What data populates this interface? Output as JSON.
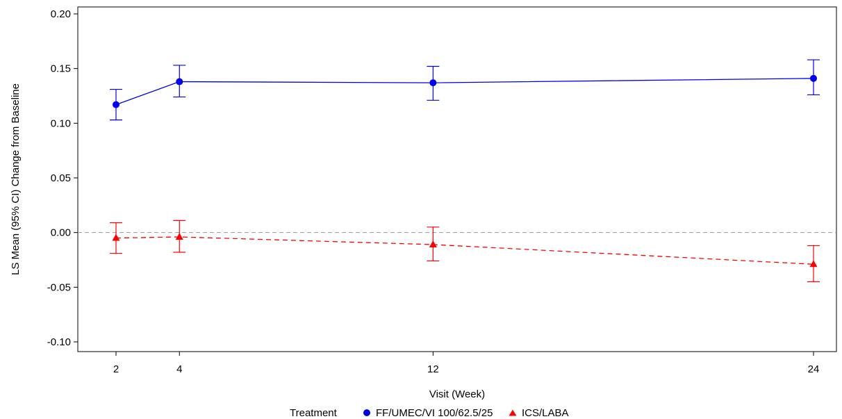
{
  "chart_data": {
    "type": "line",
    "title": "",
    "xlabel": "Visit (Week)",
    "ylabel": "LS Mean (95% CI) Change from Baseline",
    "x": [
      2,
      4,
      12,
      24
    ],
    "x_ticks": [
      "2",
      "4",
      "12",
      "24"
    ],
    "xlim": [
      0,
      25
    ],
    "y_ticks": [
      "0.20",
      "0.15",
      "0.10",
      "0.05",
      "0.00",
      "-0.05",
      "-0.10"
    ],
    "ylim": [
      -0.1,
      0.2
    ],
    "reference_line": {
      "y": 0.0,
      "style": "dashed",
      "color": "#9a9a9a"
    },
    "legend": {
      "title": "Treatment",
      "placement": "bottom"
    },
    "series": [
      {
        "name": "FF/UMEC/VI 100/62.5/25",
        "color": "#0000ee",
        "marker": "circle",
        "line_style": "solid",
        "values": [
          0.117,
          0.138,
          0.137,
          0.141
        ],
        "ci_lower": [
          0.103,
          0.124,
          0.121,
          0.126
        ],
        "ci_upper": [
          0.131,
          0.153,
          0.152,
          0.158
        ]
      },
      {
        "name": "ICS/LABA",
        "color": "#ff0000",
        "marker": "triangle",
        "line_style": "dashed",
        "values": [
          -0.005,
          -0.004,
          -0.011,
          -0.029
        ],
        "ci_lower": [
          -0.019,
          -0.018,
          -0.026,
          -0.045
        ],
        "ci_upper": [
          0.009,
          0.011,
          0.005,
          -0.012
        ]
      }
    ]
  }
}
